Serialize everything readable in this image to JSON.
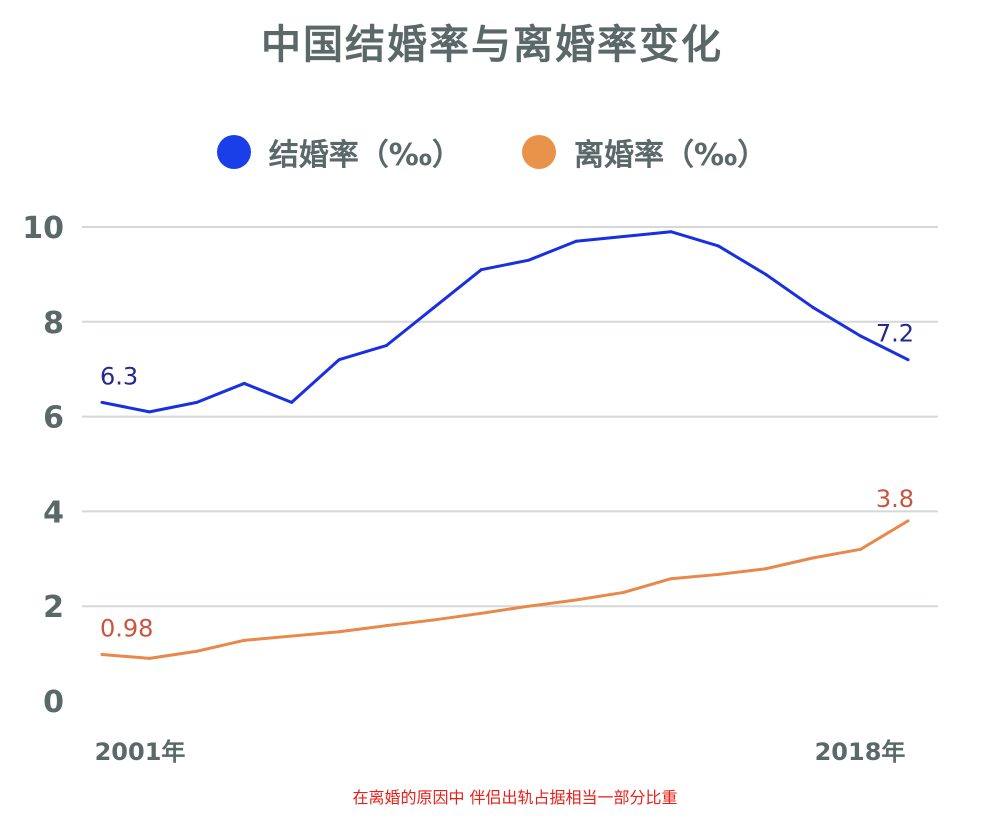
{
  "chart_data": {
    "type": "line",
    "title": "中国结婚率与离婚率变化",
    "x": [
      2001,
      2002,
      2003,
      2004,
      2005,
      2006,
      2007,
      2008,
      2009,
      2010,
      2011,
      2012,
      2013,
      2014,
      2015,
      2016,
      2017,
      2018
    ],
    "x_tick_labels": [
      "2001年",
      "2018年"
    ],
    "y_ticks": [
      "0",
      "2",
      "4",
      "6",
      "8",
      "10"
    ],
    "ylim": [
      0,
      10
    ],
    "grid": true,
    "legend_position": "top",
    "series": [
      {
        "name": "结婚率（‰）",
        "color": "#1a2fe0",
        "label_color": "#26288c",
        "values": [
          6.3,
          6.1,
          6.3,
          6.7,
          6.3,
          7.2,
          7.5,
          8.3,
          9.1,
          9.3,
          9.7,
          9.8,
          9.9,
          9.6,
          9.0,
          8.3,
          7.7,
          7.2
        ],
        "start_label": "6.3",
        "end_label": "7.2"
      },
      {
        "name": "离婚率（‰）",
        "color": "#e8884a",
        "label_color": "#c8553d",
        "values": [
          0.98,
          0.9,
          1.05,
          1.28,
          1.37,
          1.46,
          1.59,
          1.71,
          1.85,
          2.0,
          2.13,
          2.29,
          2.58,
          2.67,
          2.79,
          3.02,
          3.2,
          3.8
        ],
        "start_label": "0.98",
        "end_label": "3.8"
      }
    ]
  },
  "legend": {
    "marriage_color": "#1a3fe8",
    "divorce_color": "#e8924a"
  },
  "caption": "在离婚的原因中 伴侣出轨占据相当一部分比重"
}
